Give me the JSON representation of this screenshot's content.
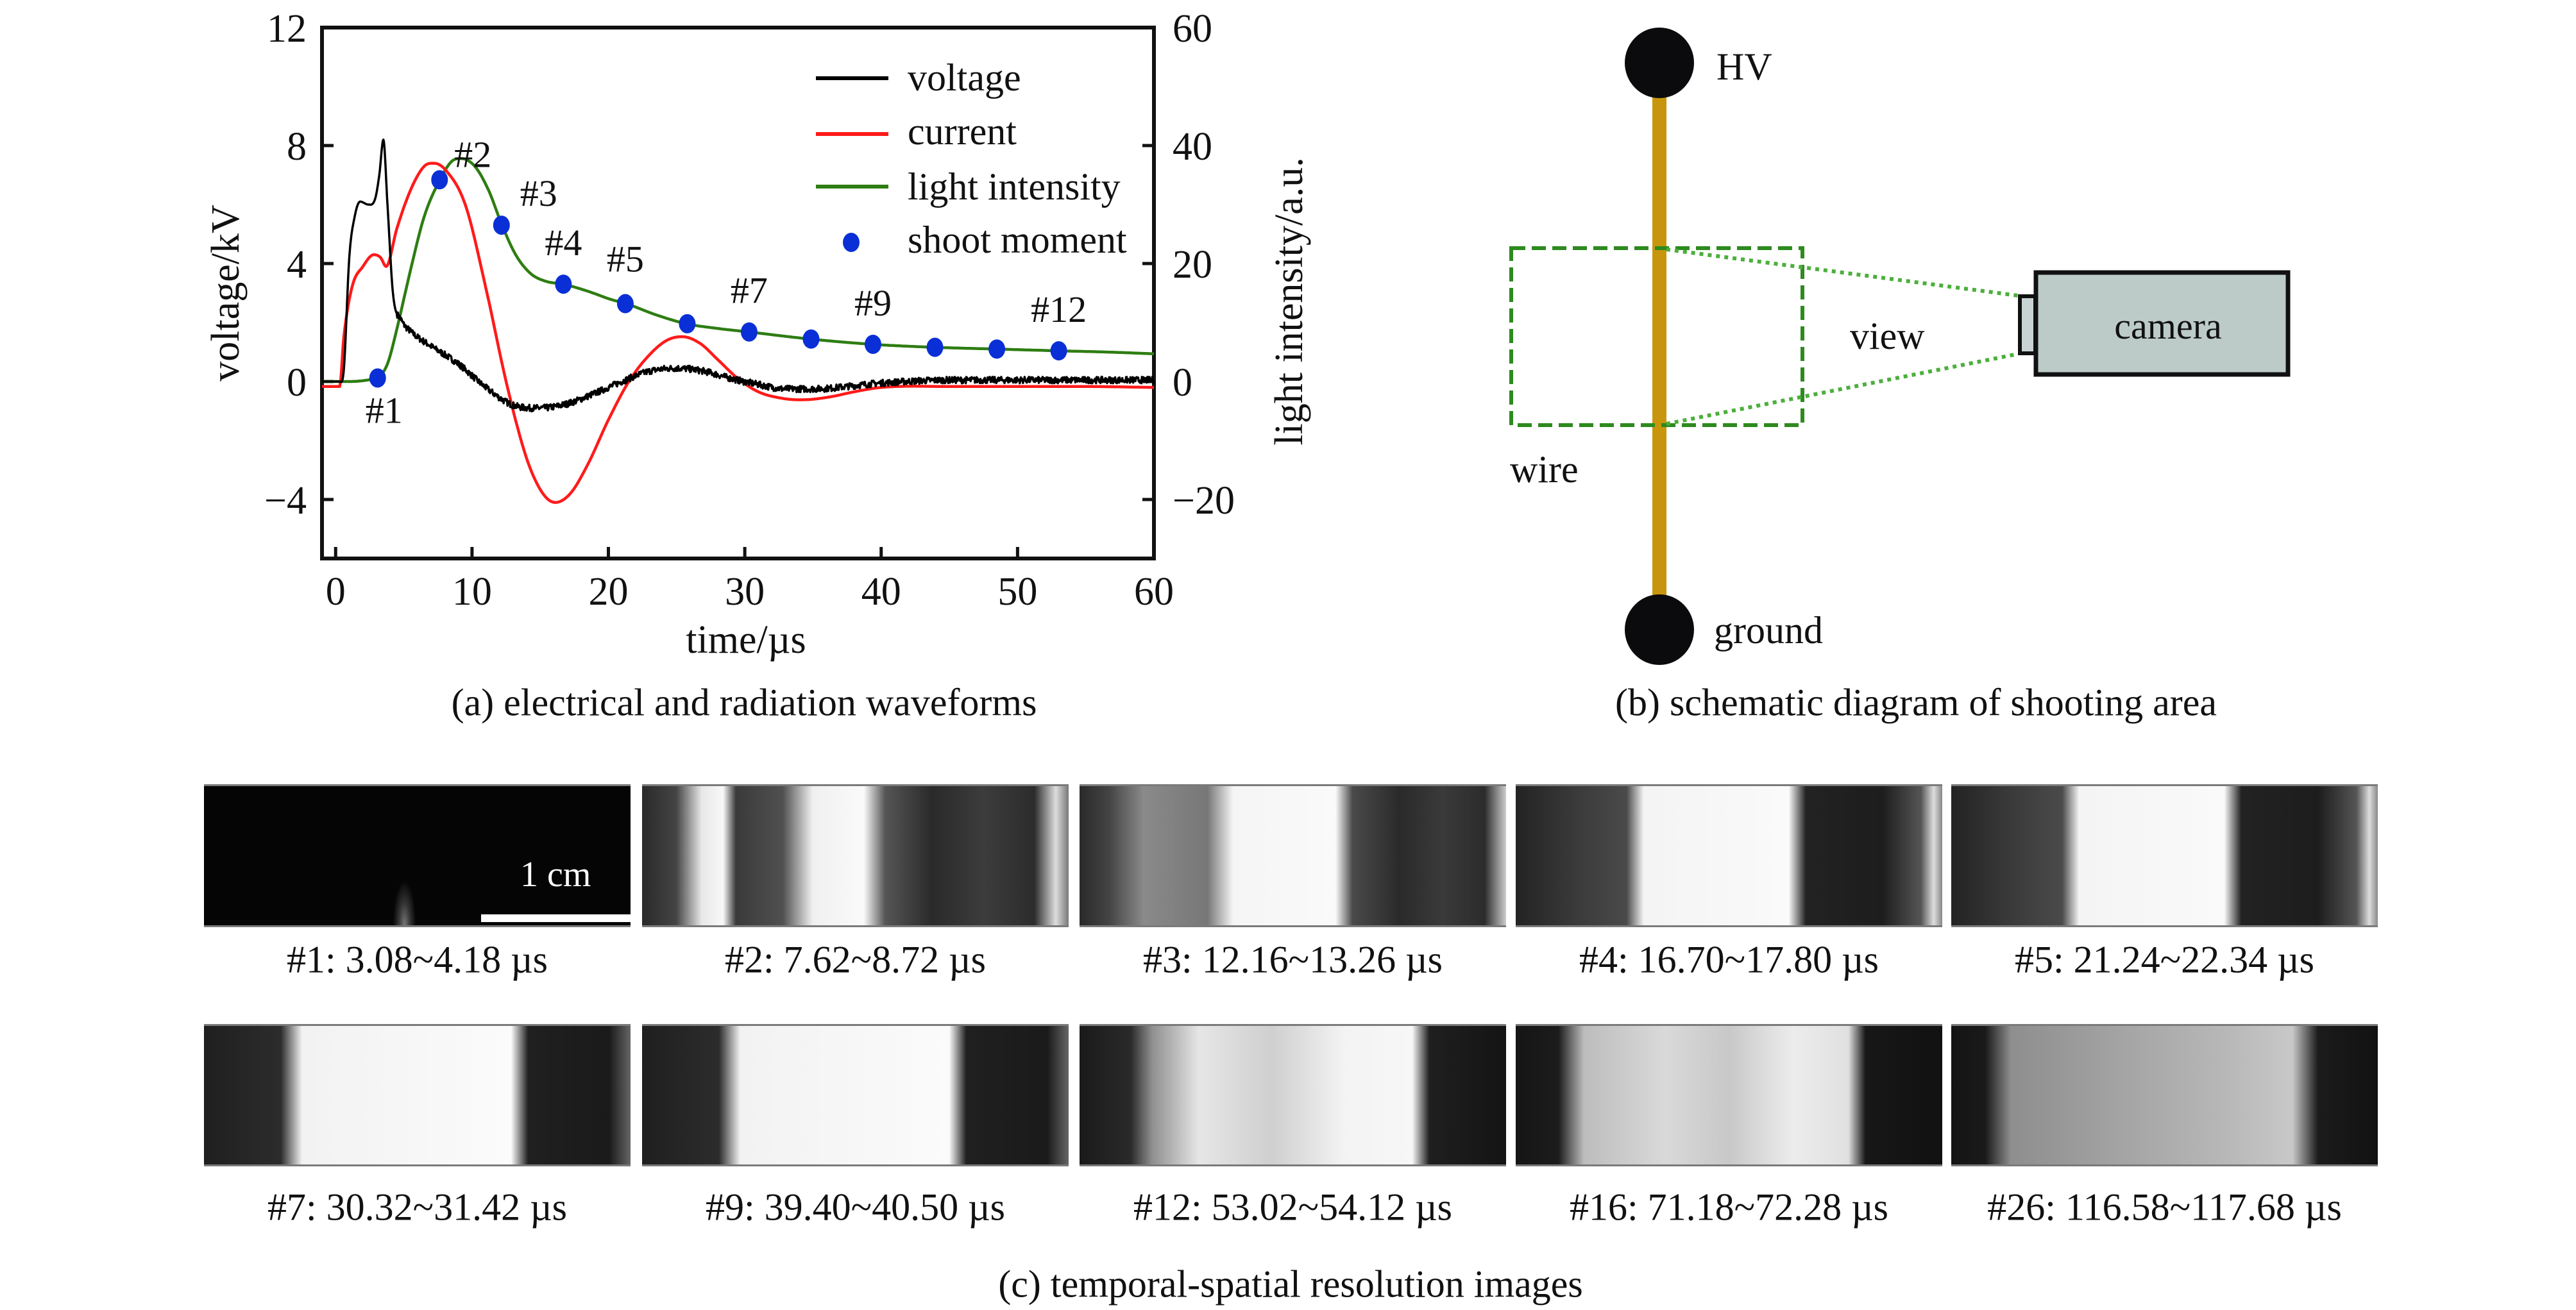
{
  "figure": {
    "caption_a": "(a) electrical and radiation waveforms",
    "caption_b": "(b) schematic diagram of shooting area",
    "caption_c": "(c) temporal-spatial resolution images"
  },
  "chart_data": {
    "type": "line",
    "title": "",
    "xlabel": "time/µs",
    "ylabel": "voltage/kV",
    "y2label": "light intensity/a.u.",
    "xlim": [
      -1,
      60
    ],
    "ylim": [
      -6,
      12
    ],
    "y2lim": [
      -30,
      60
    ],
    "xticks": [
      0,
      10,
      20,
      30,
      40,
      50,
      60
    ],
    "yticks": [
      -4,
      0,
      4,
      8,
      12
    ],
    "y2ticks": [
      -20,
      0,
      20,
      40,
      60
    ],
    "ytick_labels": [
      "−4",
      "0",
      "4",
      "8",
      "12"
    ],
    "y2tick_labels": [
      "−20",
      "0",
      "20",
      "40",
      "60"
    ],
    "grid": false,
    "legend_position": "top-right",
    "colors": {
      "voltage": "#000000",
      "current": "#ff1a1a",
      "light": "#2e7d12",
      "shoot": "#0a2fd6"
    },
    "series": [
      {
        "name": "voltage",
        "axis": "left",
        "x": [
          -1,
          0.3,
          0.6,
          1.0,
          1.4,
          1.8,
          2.4,
          2.9,
          3.2,
          3.5,
          3.8,
          4.2,
          4.8,
          5.5,
          7,
          9,
          11,
          13,
          15,
          17,
          19,
          21,
          23,
          25,
          27,
          29,
          31,
          33,
          35,
          40,
          45,
          50,
          55,
          60
        ],
        "values": [
          0,
          0,
          0.4,
          4.2,
          5.6,
          6.1,
          6.0,
          6.2,
          7.0,
          8.2,
          6.0,
          3.0,
          2.1,
          1.7,
          1.2,
          0.6,
          -0.2,
          -0.8,
          -0.9,
          -0.75,
          -0.4,
          0.0,
          0.35,
          0.45,
          0.35,
          0.1,
          -0.1,
          -0.25,
          -0.25,
          -0.05,
          0.05,
          0.05,
          0.05,
          0.05
        ]
      },
      {
        "name": "current",
        "axis": "left",
        "x": [
          -1,
          0.3,
          0.6,
          1.2,
          2.0,
          2.8,
          3.3,
          3.7,
          4.5,
          5.5,
          6.5,
          7.2,
          8.0,
          9.5,
          11,
          12.5,
          14,
          15.2,
          16.1,
          17.2,
          18.5,
          20,
          21.5,
          23,
          24.3,
          25.4,
          26.7,
          28,
          29.5,
          31,
          32.5,
          34,
          35,
          36.5,
          38,
          40,
          45,
          50,
          55,
          60
        ],
        "values": [
          -0.17,
          -0.17,
          1.5,
          3.2,
          3.9,
          4.3,
          4.2,
          3.9,
          5.2,
          6.5,
          7.3,
          7.4,
          7.2,
          6.0,
          3.2,
          0.0,
          -2.6,
          -3.8,
          -4.1,
          -3.8,
          -2.8,
          -1.3,
          0.0,
          0.9,
          1.4,
          1.52,
          1.3,
          0.75,
          0.1,
          -0.35,
          -0.55,
          -0.62,
          -0.6,
          -0.5,
          -0.35,
          -0.2,
          -0.17,
          -0.17,
          -0.17,
          -0.2
        ]
      },
      {
        "name": "light intensity",
        "axis": "right",
        "x": [
          -1,
          1,
          2.5,
          3.1,
          3.8,
          4.5,
          5.5,
          6.5,
          7.6,
          8.5,
          9.2,
          10.2,
          11.2,
          12.2,
          13.2,
          14.3,
          15.4,
          16.7,
          18.5,
          20.2,
          21.3,
          23.5,
          25.7,
          28,
          30.3,
          34.8,
          39.4,
          43.9,
          48.5,
          53.1,
          56.5,
          60
        ],
        "values": [
          0,
          0,
          0.3,
          0.6,
          3,
          9,
          19,
          28,
          34,
          37.3,
          37.8,
          36.5,
          32.5,
          26.5,
          21.5,
          18.3,
          17.0,
          16.5,
          15.3,
          13.9,
          13.2,
          11.3,
          9.8,
          9.0,
          8.4,
          7.2,
          6.3,
          5.8,
          5.5,
          5.2,
          5.0,
          4.7
        ]
      }
    ],
    "shoot_moments": {
      "name": "shoot moment",
      "axis": "right",
      "x": [
        3.08,
        7.62,
        12.16,
        16.7,
        21.24,
        25.78,
        30.32,
        34.86,
        39.4,
        43.94,
        48.48,
        53.02
      ],
      "values": [
        0.6,
        34.2,
        26.5,
        16.5,
        13.2,
        9.8,
        8.4,
        7.2,
        6.3,
        5.8,
        5.5,
        5.2
      ],
      "labels": [
        "#1",
        "#2",
        "#3",
        "#4",
        "#5",
        "",
        "#7",
        "",
        "#9",
        "",
        "",
        "#12"
      ]
    },
    "legend": [
      "voltage",
      "current",
      "light intensity",
      "shoot moment"
    ]
  },
  "schematic": {
    "hv_label": "HV",
    "ground_label": "ground",
    "wire_label": "wire",
    "view_label": "view",
    "camera_label": "camera",
    "wire_color": "#c8960c",
    "view_box_color": "#2e8a1f",
    "camera_fill": "#bccbc8"
  },
  "images": {
    "scale_bar_label": "1 cm",
    "row1": [
      {
        "caption": "#1: 3.08~4.18 µs",
        "kind": "dark"
      },
      {
        "caption": "#2: 7.62~8.72 µs",
        "kind": "early2"
      },
      {
        "caption": "#3: 12.16~13.26 µs",
        "kind": "early3"
      },
      {
        "caption": "#4: 16.70~17.80 µs",
        "kind": "channel"
      },
      {
        "caption": "#5: 21.24~22.34 µs",
        "kind": "channel"
      }
    ],
    "row2": [
      {
        "caption": "#7: 30.32~31.42 µs",
        "kind": "channel-narrow"
      },
      {
        "caption": "#9: 39.40~40.50 µs",
        "kind": "channel-narrow"
      },
      {
        "caption": "#12: 53.02~54.12 µs",
        "kind": "plasma"
      },
      {
        "caption": "#16: 71.18~72.28 µs",
        "kind": "plasma-wide"
      },
      {
        "caption": "#26: 116.58~117.68 µs",
        "kind": "plasma-grey"
      }
    ]
  }
}
